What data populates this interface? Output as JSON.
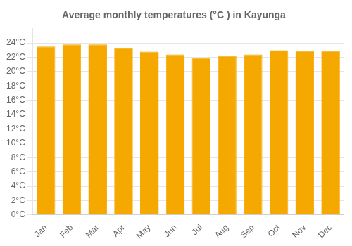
{
  "chart_data": {
    "type": "bar",
    "title": "Average monthly temperatures (°C ) in Kayunga",
    "categories": [
      "Jan",
      "Feb",
      "Mar",
      "Apr",
      "May",
      "Jun",
      "Jul",
      "Aug",
      "Sep",
      "Oct",
      "Nov",
      "Dec"
    ],
    "values": [
      23.5,
      23.8,
      23.8,
      23.3,
      22.8,
      22.4,
      21.9,
      22.2,
      22.4,
      23.0,
      22.9,
      22.9
    ],
    "color": "#F5A800",
    "ylim": [
      0,
      26
    ],
    "yticks": [
      {
        "value": 0,
        "label": "0°C"
      },
      {
        "value": 2,
        "label": "2°C"
      },
      {
        "value": 4,
        "label": "4°C"
      },
      {
        "value": 6,
        "label": "6°C"
      },
      {
        "value": 8,
        "label": "8°C"
      },
      {
        "value": 10,
        "label": "10°C"
      },
      {
        "value": 12,
        "label": "12°C"
      },
      {
        "value": 14,
        "label": "14°C"
      },
      {
        "value": 16,
        "label": "16°C"
      },
      {
        "value": 18,
        "label": "18°C"
      },
      {
        "value": 20,
        "label": "20°C"
      },
      {
        "value": 22,
        "label": "22°C"
      },
      {
        "value": 24,
        "label": "24°C"
      }
    ],
    "grid": true
  }
}
